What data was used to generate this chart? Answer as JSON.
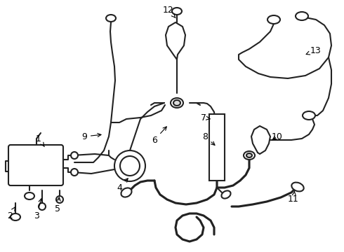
{
  "background_color": "#ffffff",
  "line_color": "#222222",
  "line_width": 1.5,
  "label_fontsize": 9,
  "label_color": "#000000",
  "figsize": [
    4.9,
    3.6
  ],
  "dpi": 100
}
